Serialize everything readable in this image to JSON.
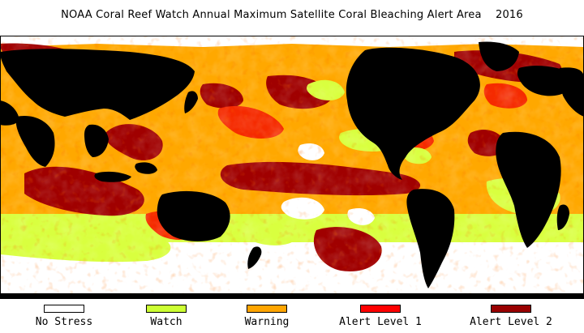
{
  "title": "NOAA Coral Reef Watch Annual Maximum Satellite Coral Bleaching Alert Area    2016",
  "map": {
    "colors": {
      "land": "#000000",
      "no_stress": "#ffffff",
      "watch": "#d9ff3f",
      "warning": "#ffa800",
      "alert_level_1": "#f52a00",
      "alert_level_2": "#a00000"
    }
  },
  "legend": [
    {
      "label": "No Stress",
      "color": "#ffffff"
    },
    {
      "label": "Watch",
      "color": "#ccff33"
    },
    {
      "label": "Warning",
      "color": "#ffa500"
    },
    {
      "label": "Alert Level 1",
      "color": "#ff0000"
    },
    {
      "label": "Alert Level 2",
      "color": "#990000"
    }
  ]
}
